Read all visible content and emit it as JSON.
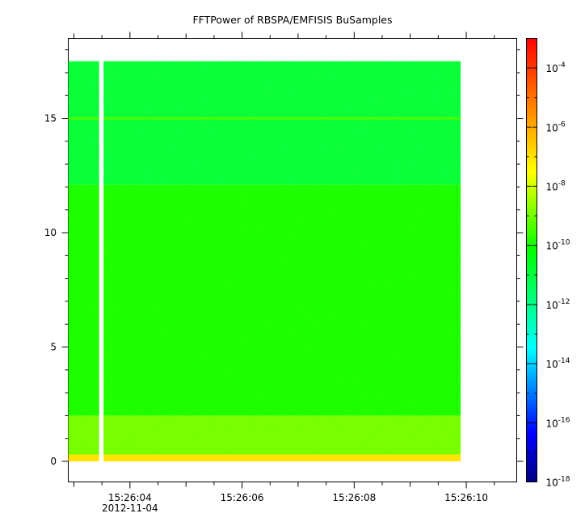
{
  "chart_data": {
    "type": "heatmap",
    "title": "FFTPower of RBSPA/EMFISIS  BuSamples",
    "xlabel": "",
    "ylabel": "",
    "x_axis": {
      "range": [
        "15:26:02.9",
        "15:26:10.9"
      ],
      "ticks": [
        "15:26:04",
        "15:26:06",
        "15:26:08",
        "15:26:10"
      ],
      "date_label": "2012-11-04",
      "data_span": [
        "15:26:02.9",
        "15:26:09.9"
      ],
      "gap": [
        "15:26:03.45",
        "15:26:03.53"
      ]
    },
    "y_axis": {
      "range": [
        -0.9,
        18.5
      ],
      "ticks": [
        0,
        5,
        10,
        15
      ],
      "data_span": [
        0,
        17.5
      ]
    },
    "colorbar": {
      "scale": "log",
      "range": [
        1e-18,
        0.001
      ],
      "colormap": "rainbow",
      "tick_labels": [
        {
          "base": "10",
          "exp": "-4",
          "value": 0.0001
        },
        {
          "base": "10",
          "exp": "-6",
          "value": 1e-06
        },
        {
          "base": "10",
          "exp": "-8",
          "value": 1e-08
        },
        {
          "base": "10",
          "exp": "-10",
          "value": 1e-10
        },
        {
          "base": "10",
          "exp": "-12",
          "value": 1e-12
        },
        {
          "base": "10",
          "exp": "-14",
          "value": 1e-14
        },
        {
          "base": "10",
          "exp": "-16",
          "value": 1e-16
        },
        {
          "base": "10",
          "exp": "-18",
          "value": 1e-18
        }
      ]
    },
    "bands": [
      {
        "y_from": 12.1,
        "y_to": 17.5,
        "level": 1e-11
      },
      {
        "y_from": 2,
        "y_to": 12.1,
        "level": 1e-10
      },
      {
        "y_from": 0.3,
        "y_to": 2,
        "level": 1e-09
      },
      {
        "y_from": 0,
        "y_to": 0.3,
        "level": 1e-07
      }
    ],
    "line_feature": {
      "y": 15,
      "level": 3e-10
    }
  }
}
